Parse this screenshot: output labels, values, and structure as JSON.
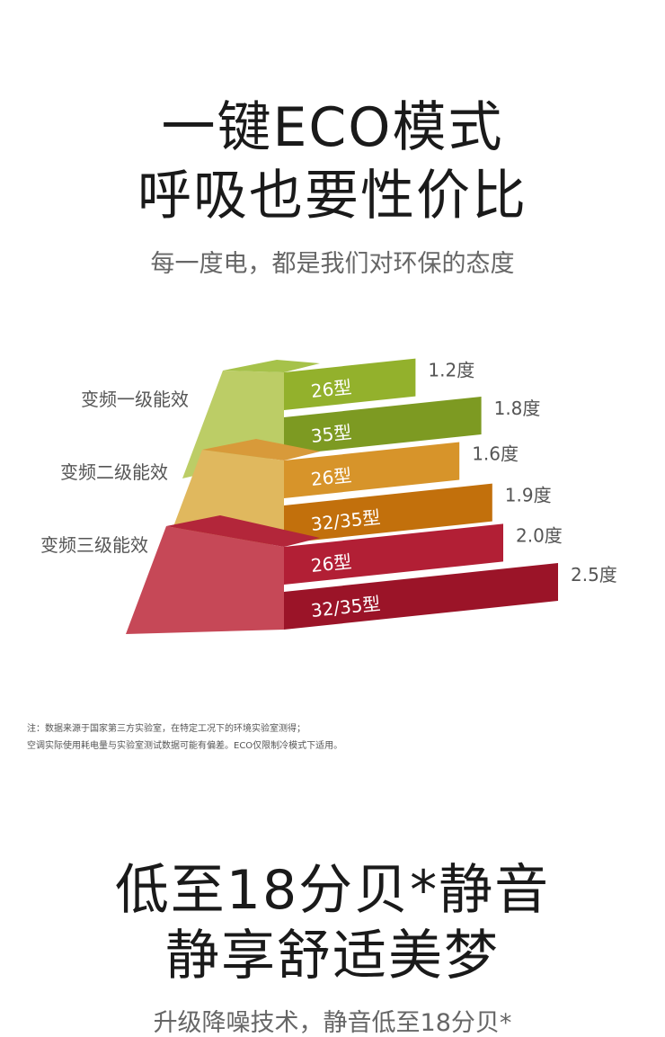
{
  "eco_section": {
    "title_line1": "一键ECO模式",
    "title_line2": "呼吸也要性价比",
    "subtitle": "每一度电，都是我们对环保的态度"
  },
  "chart_data": {
    "type": "bar",
    "unit": "度",
    "groups": [
      {
        "name": "变频一级能效",
        "color_top": "#a6c24a",
        "color_front": "#bccd66",
        "bars": [
          {
            "label": "26型",
            "value": 1.2,
            "value_text": "1.2度",
            "color": "#93b12c"
          },
          {
            "label": "35型",
            "value": 1.8,
            "value_text": "1.8度",
            "color": "#7d9a22"
          }
        ]
      },
      {
        "name": "变频二级能效",
        "color_top": "#d89a3a",
        "color_front": "#e0b85e",
        "bars": [
          {
            "label": "26型",
            "value": 1.6,
            "value_text": "1.6度",
            "color": "#d7942a"
          },
          {
            "label": "32/35型",
            "value": 1.9,
            "value_text": "1.9度",
            "color": "#c2700c"
          }
        ]
      },
      {
        "name": "变频三级能效",
        "color_top": "#b3263a",
        "color_front": "#c64857",
        "bars": [
          {
            "label": "26型",
            "value": 2.0,
            "value_text": "2.0度",
            "color": "#b21f35"
          },
          {
            "label": "32/35型",
            "value": 2.5,
            "value_text": "2.5度",
            "color": "#9b1428"
          }
        ]
      }
    ]
  },
  "note": {
    "line1": "注：数据来源于国家第三方实验室，在特定工况下的环境实验室测得；",
    "line2": "空调实际使用耗电量与实验室测试数据可能有偏差。ECO仅限制冷模式下适用。"
  },
  "quiet_section": {
    "title_line1": "低至18分贝*静音",
    "title_line2": "静享舒适美梦",
    "subtitle": "升级降噪技术，静音低至18分贝*"
  }
}
